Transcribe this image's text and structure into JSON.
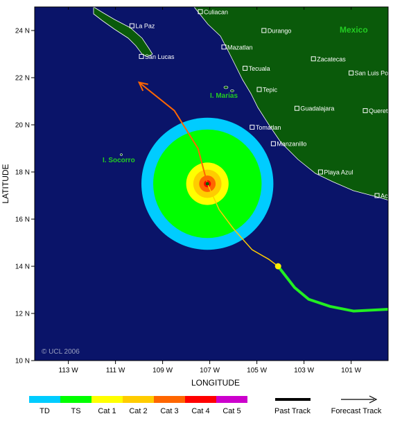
{
  "map": {
    "axes": {
      "x_title": "LONGITUDE",
      "y_title": "LATITUDE",
      "x_ticks": [
        "113 W",
        "111 W",
        "109 W",
        "107 W",
        "105 W",
        "103 W",
        "101 W"
      ],
      "y_ticks": [
        "24 N",
        "22 N",
        "20 N",
        "18 N",
        "16 N",
        "14 N",
        "12 N",
        "10 N"
      ]
    },
    "country_label": "Mexico",
    "islands": {
      "marias": "I. Marias",
      "socorro": "I. Socorro"
    },
    "cities": [
      {
        "name": "Culiacan",
        "lon": -107.4,
        "lat": 24.8
      },
      {
        "name": "La Paz",
        "lon": -110.3,
        "lat": 24.2
      },
      {
        "name": "Durango",
        "lon": -104.7,
        "lat": 24.0
      },
      {
        "name": "Mazatlan",
        "lon": -106.4,
        "lat": 23.3
      },
      {
        "name": "San Lucas",
        "lon": -109.9,
        "lat": 22.9
      },
      {
        "name": "Zacatecas",
        "lon": -102.6,
        "lat": 22.8
      },
      {
        "name": "Tecuala",
        "lon": -105.5,
        "lat": 22.4
      },
      {
        "name": "San Luis Potosi",
        "lon": -101.0,
        "lat": 22.2
      },
      {
        "name": "Tepic",
        "lon": -104.9,
        "lat": 21.5
      },
      {
        "name": "Guadalajara",
        "lon": -103.3,
        "lat": 20.7
      },
      {
        "name": "Queretaro",
        "lon": -100.4,
        "lat": 20.6
      },
      {
        "name": "Tomatlan",
        "lon": -105.2,
        "lat": 19.9
      },
      {
        "name": "Manzanillo",
        "lon": -104.3,
        "lat": 19.2
      },
      {
        "name": "Playa Azul",
        "lon": -102.3,
        "lat": 18.0
      },
      {
        "name": "Acapulco",
        "lon": -99.9,
        "lat": 17.0
      }
    ],
    "copyright": "© UCL 2006",
    "storm_center": {
      "lon": -107.1,
      "lat": 17.5
    },
    "wind_field_radii_deg": {
      "TD": 2.8,
      "TS": 2.3,
      "Cat1": 0.9,
      "Cat2": 0.6,
      "Cat3": 0.35,
      "Cat4": 0.15
    },
    "past_track": [
      {
        "lon": -99.0,
        "lat": 12.2
      },
      {
        "lon": -100.9,
        "lat": 12.1
      },
      {
        "lon": -101.9,
        "lat": 12.3
      },
      {
        "lon": -102.8,
        "lat": 12.6
      },
      {
        "lon": -103.4,
        "lat": 13.1
      },
      {
        "lon": -104.1,
        "lat": 14.0
      },
      {
        "lon": -104.5,
        "lat": 14.3
      },
      {
        "lon": -105.2,
        "lat": 14.7
      },
      {
        "lon": -106.0,
        "lat": 15.6
      },
      {
        "lon": -106.6,
        "lat": 16.4
      },
      {
        "lon": -107.1,
        "lat": 17.5
      }
    ],
    "forecast_track": [
      {
        "lon": -107.1,
        "lat": 17.5
      },
      {
        "lon": -107.5,
        "lat": 19.0
      },
      {
        "lon": -108.5,
        "lat": 20.6
      },
      {
        "lon": -110.0,
        "lat": 21.8
      }
    ],
    "marker": {
      "lon": -104.1,
      "lat": 14.0
    }
  },
  "legend": {
    "categories": [
      {
        "label": "TD",
        "color": "#00ccff"
      },
      {
        "label": "TS",
        "color": "#00ff00"
      },
      {
        "label": "Cat 1",
        "color": "#ffff00"
      },
      {
        "label": "Cat 2",
        "color": "#ffcc00"
      },
      {
        "label": "Cat 3",
        "color": "#ff6600"
      },
      {
        "label": "Cat 4",
        "color": "#ff0000"
      },
      {
        "label": "Cat 5",
        "color": "#cc00cc"
      }
    ],
    "past_track_label": "Past Track",
    "forecast_track_label": "Forecast Track"
  },
  "colors": {
    "ocean": "#0a1469",
    "land": "#0a5a0a",
    "coast": "#ffffff",
    "track_past_ts": "#22ee22",
    "track_past_hurricane": "#ffcc00",
    "track_forecast": "#ff6600"
  }
}
